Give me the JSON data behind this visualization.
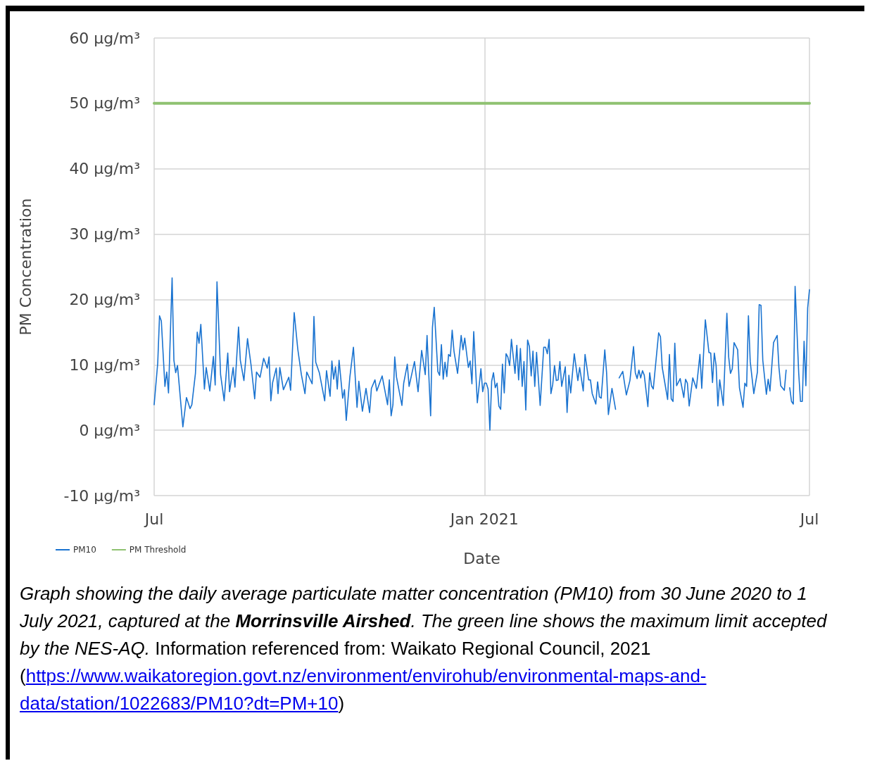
{
  "chart_data": {
    "type": "line",
    "xlabel": "Date",
    "ylabel": "PM Concentration",
    "xlim": [
      "2020-07-01",
      "2021-07-01"
    ],
    "xticks": [
      {
        "value": "2020-07-01",
        "label": "Jul"
      },
      {
        "value": "2021-01-01",
        "label": "Jan 2021"
      },
      {
        "value": "2021-07-01",
        "label": "Jul"
      }
    ],
    "ylim": [
      -10,
      60
    ],
    "yticks": [
      {
        "value": -10,
        "label": "-10 μg/m³"
      },
      {
        "value": 0,
        "label": "0 μg/m³"
      },
      {
        "value": 10,
        "label": "10 μg/m³"
      },
      {
        "value": 20,
        "label": "20 μg/m³"
      },
      {
        "value": 30,
        "label": "30 μg/m³"
      },
      {
        "value": 40,
        "label": "40 μg/m³"
      },
      {
        "value": 50,
        "label": "50 μg/m³"
      },
      {
        "value": 60,
        "label": "60 μg/m³"
      }
    ],
    "grid": true,
    "legend": "bottom left",
    "series": [
      {
        "name": "PM10",
        "color": "#1a73d0",
        "x": [
          "2020-07-01",
          "2020-07-03",
          "2020-07-04",
          "2020-07-05",
          "2020-07-07",
          "2020-07-08",
          "2020-07-09",
          "2020-07-11",
          "2020-07-12",
          "2020-07-13",
          "2020-07-14",
          "2020-07-17",
          "2020-07-19",
          "2020-07-21",
          "2020-07-22",
          "2020-07-24",
          "2020-07-25",
          "2020-07-26",
          "2020-07-27",
          "2020-07-29",
          "2020-07-30",
          "2020-08-01",
          "2020-08-03",
          "2020-08-04",
          "2020-08-05",
          "2020-08-07",
          "2020-08-09",
          "2020-08-11",
          "2020-08-12",
          "2020-08-14",
          "2020-08-15",
          "2020-08-17",
          "2020-08-18",
          "2020-08-20",
          "2020-08-22",
          "2020-08-24",
          "2020-08-26",
          "2020-08-27",
          "2020-08-29",
          "2020-08-31",
          "2020-09-02",
          "2020-09-03",
          "2020-09-04",
          "2020-09-05",
          "2020-09-07",
          "2020-09-08",
          "2020-09-09",
          "2020-09-11",
          "2020-09-14",
          "2020-09-15",
          "2020-09-17",
          "2020-09-19",
          "2020-09-21",
          "2020-09-23",
          "2020-09-24",
          "2020-09-27",
          "2020-09-28",
          "2020-09-29",
          "2020-10-01",
          "2020-10-04",
          "2020-10-05",
          "2020-10-07",
          "2020-10-08",
          "2020-10-09",
          "2020-10-10",
          "2020-10-11",
          "2020-10-12",
          "2020-10-14",
          "2020-10-15",
          "2020-10-16",
          "2020-10-18",
          "2020-10-20",
          "2020-10-22",
          "2020-10-23",
          "2020-10-25",
          "2020-10-27",
          "2020-10-29",
          "2020-10-30",
          "2020-11-01",
          "2020-11-02",
          "2020-11-05",
          "2020-11-08",
          "2020-11-09",
          "2020-11-10",
          "2020-11-11",
          "2020-11-12",
          "2020-11-13",
          "2020-11-16",
          "2020-11-17",
          "2020-11-19",
          "2020-11-20",
          "2020-11-23",
          "2020-11-25",
          "2020-11-27",
          "2020-11-29",
          "2020-11-30",
          "2020-12-02",
          "2020-12-03",
          "2020-12-04",
          "2020-12-06",
          "2020-12-07",
          "2020-12-08",
          "2020-12-09",
          "2020-12-10",
          "2020-12-11",
          "2020-12-12",
          "2020-12-13",
          "2020-12-14",
          "2020-12-15",
          "2020-12-17",
          "2020-12-19",
          "2020-12-20",
          "2020-12-21",
          "2020-12-23",
          "2020-12-24",
          "2020-12-25",
          "2020-12-26",
          "2020-12-28",
          "2020-12-30",
          "2020-12-31",
          "2021-01-01",
          "2021-01-02",
          "2021-01-03",
          "2021-01-04",
          "2021-01-05",
          "2021-01-06",
          "2021-01-07",
          "2021-01-08",
          "2021-01-09",
          "2021-01-10",
          "2021-01-11",
          "2021-01-12",
          "2021-01-13",
          "2021-01-14",
          "2021-01-15",
          "2021-01-16",
          "2021-01-18",
          "2021-01-19",
          "2021-01-20",
          "2021-01-21",
          "2021-01-22",
          "2021-01-23",
          "2021-01-24",
          "2021-01-25",
          "2021-01-26",
          "2021-01-27",
          "2021-01-28",
          "2021-01-29",
          "2021-01-30",
          "2021-02-01",
          "2021-02-03",
          "2021-02-04",
          "2021-02-05",
          "2021-02-06",
          "2021-02-07",
          "2021-02-08",
          "2021-02-09",
          "2021-02-10",
          "2021-02-11",
          "2021-02-12",
          "2021-02-13",
          "2021-02-15",
          "2021-02-16",
          "2021-02-17",
          "2021-02-18",
          "2021-02-20",
          "2021-02-22",
          "2021-02-23",
          "2021-02-25",
          "2021-02-26",
          "2021-02-28",
          "2021-03-01",
          "2021-03-02",
          "2021-03-04",
          "2021-03-05",
          "2021-03-06",
          "2021-03-07",
          "2021-03-09",
          "2021-03-10",
          "2021-03-11",
          "2021-03-13",
          "2021-03-15",
          "2021-03-16",
          "2021-03-17",
          "2021-03-19",
          "2021-03-21",
          "2021-03-23",
          "2021-03-25",
          "2021-03-26",
          "2021-03-27",
          "2021-03-28",
          "2021-03-29",
          "2021-03-30",
          "2021-03-31",
          "2021-04-02",
          "2021-04-03",
          "2021-04-04",
          "2021-04-05",
          "2021-04-08",
          "2021-04-09",
          "2021-04-10",
          "2021-04-13",
          "2021-04-14",
          "2021-04-15",
          "2021-04-16",
          "2021-04-17",
          "2021-04-18",
          "2021-04-20",
          "2021-04-22",
          "2021-04-23",
          "2021-04-24",
          "2021-04-25",
          "2021-04-27",
          "2021-04-29",
          "2021-05-01",
          "2021-05-02",
          "2021-05-04",
          "2021-05-06",
          "2021-05-07",
          "2021-05-08",
          "2021-05-09",
          "2021-05-10",
          "2021-05-11",
          "2021-05-12",
          "2021-05-14",
          "2021-05-16",
          "2021-05-17",
          "2021-05-18",
          "2021-05-19",
          "2021-05-20",
          "2021-05-22",
          "2021-05-23",
          "2021-05-25",
          "2021-05-26",
          "2021-05-27",
          "2021-05-28",
          "2021-05-29",
          "2021-05-31",
          "2021-06-02",
          "2021-06-03",
          "2021-06-04",
          "2021-06-05",
          "2021-06-07",
          "2021-06-08",
          "2021-06-09",
          "2021-06-11",
          "2021-06-13",
          "2021-06-14",
          "2021-06-15",
          "2021-06-17",
          "2021-06-18",
          "2021-06-19",
          "2021-06-20",
          "2021-06-21",
          "2021-06-22",
          "2021-06-23",
          "2021-06-25",
          "2021-06-26",
          "2021-06-27",
          "2021-06-28",
          "2021-06-29",
          "2021-06-30",
          "2021-07-01"
        ],
        "values": [
          3.9,
          10.3,
          17.5,
          16.7,
          6.7,
          8.9,
          5.7,
          23.3,
          10.7,
          8.8,
          9.9,
          0.5,
          5.0,
          3.3,
          3.9,
          8.7,
          15.0,
          13.3,
          16.2,
          6.3,
          9.6,
          6.0,
          11.3,
          6.9,
          22.7,
          8.5,
          4.5,
          11.8,
          5.9,
          9.6,
          6.6,
          15.8,
          10.7,
          7.6,
          14.0,
          9.9,
          4.8,
          8.9,
          8.1,
          11.0,
          9.5,
          11.2,
          4.5,
          7.3,
          9.5,
          5.6,
          9.6,
          6.2,
          8.1,
          6.1,
          18.0,
          12.4,
          8.5,
          5.6,
          8.9,
          7.1,
          17.4,
          10.4,
          8.8,
          4.5,
          9.1,
          5.2,
          10.6,
          7.8,
          9.7,
          6.3,
          10.7,
          4.9,
          6.2,
          1.5,
          8.1,
          12.7,
          3.5,
          7.5,
          2.9,
          6.4,
          2.7,
          6.4,
          7.7,
          6.0,
          8.3,
          3.9,
          7.7,
          2.2,
          3.9,
          11.2,
          8.1,
          3.8,
          7.2,
          10.1,
          6.7,
          10.5,
          5.9,
          12.2,
          8.5,
          14.5,
          2.2,
          15.7,
          18.8,
          9.0,
          8.4,
          13.1,
          7.8,
          10.4,
          8.2,
          11.6,
          11.3,
          15.3,
          12.1,
          8.7,
          14.5,
          12.3,
          14.1,
          9.6,
          10.6,
          7.1,
          15.1,
          4.2,
          9.4,
          5.9,
          7.2,
          7.2,
          6.3,
          0,
          7.5,
          8.8,
          6.5,
          7.2,
          3.7,
          3.2,
          10.1,
          5.7,
          11.7,
          11.2,
          9.9,
          13.9,
          8.7,
          13.0,
          7.7,
          12.5,
          6.7,
          10.5,
          3.1,
          13.8,
          12.8,
          8.3,
          12.1,
          6.7,
          11.9,
          3.8,
          12.7,
          12.7,
          11.7,
          13.9,
          5.6,
          7.0,
          9.9,
          7.6,
          7.7,
          10.5,
          6.7,
          9.7,
          2.7,
          8.4,
          5.7,
          11.7,
          7.6,
          9.6,
          6.0,
          11.6,
          7.7,
          7.7,
          5.6,
          4.0,
          7.4,
          5.1,
          4.9,
          12.3,
          8.8,
          2.4,
          6.4,
          3.2,
          null,
          8.0,
          9.0,
          5.4,
          7.6,
          12.8,
          8.8,
          7.9,
          9.2,
          8.0,
          9.1,
          8.4,
          3.6,
          8.8,
          6.8,
          6.3,
          14.9,
          14.3,
          9.6,
          4.7,
          11.6,
          4.8,
          4.4,
          13.3,
          6.8,
          7.9,
          5.0,
          7.8,
          7.2,
          3.7,
          8.0,
          6.4,
          11.6,
          6.4,
          16.9,
          11.9,
          11.8,
          7.3,
          11.8,
          9.9,
          3.7,
          7.7,
          3.8,
          17.9,
          11.2,
          8.7,
          9.4,
          13.4,
          12.3,
          6.5,
          3.5,
          7.2,
          6.7,
          17.5,
          10.5,
          5.6,
          8.9,
          19.2,
          19.1,
          10.7,
          5.5,
          7.8,
          6.0,
          13.4,
          14.5,
          9.6,
          6.8,
          6.1,
          9.2,
          null,
          6.5,
          4.4,
          4.0,
          22.0,
          8.8,
          4.4,
          4.4,
          13.6,
          6.8,
          18.7,
          21.5
        ]
      },
      {
        "name": "PM Threshold",
        "color": "#8fc271",
        "x": [
          "2020-07-01",
          "2021-07-01"
        ],
        "values": [
          50,
          50
        ]
      }
    ],
    "annotations": [
      "Graph showing the daily average particulate matter concentration (PM10) from 30 June 2020 to 1 July 2021, captured at the ",
      "Morrinsville Airshed",
      ". The green line shows the maximum limit accepted by the NES-AQ.",
      " Information referenced from: Waikato Regional Council, 2021 (",
      "https://www.waikatoregion.govt.nz/environment/envirohub/environmental-maps-and-data/station/1022683/PM10?dt=PM+10",
      ")"
    ]
  }
}
